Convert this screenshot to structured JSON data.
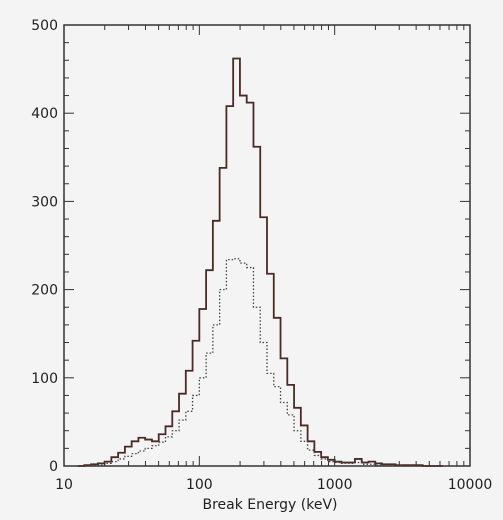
{
  "chart_data": {
    "type": "histogram",
    "xscale": "log",
    "xlabel": "Break Energy (keV)",
    "ylabel": "",
    "title": "",
    "xlim": [
      10,
      10000
    ],
    "ylim": [
      0,
      500
    ],
    "x_ticks": [
      10,
      100,
      1000,
      10000
    ],
    "x_tick_labels": [
      "10",
      "100",
      "1000",
      "10000"
    ],
    "y_ticks": [
      0,
      100,
      200,
      300,
      400,
      500
    ],
    "y_tick_labels": [
      "0",
      "100",
      "200",
      "300",
      "400",
      "500"
    ],
    "grid": false,
    "bin_edges_log10": [
      1.1,
      1.15,
      1.2,
      1.25,
      1.3,
      1.35,
      1.4,
      1.45,
      1.5,
      1.55,
      1.6,
      1.65,
      1.7,
      1.75,
      1.8,
      1.85,
      1.9,
      1.95,
      2.0,
      2.05,
      2.1,
      2.15,
      2.2,
      2.25,
      2.3,
      2.35,
      2.4,
      2.45,
      2.5,
      2.55,
      2.6,
      2.65,
      2.7,
      2.75,
      2.8,
      2.85,
      2.9,
      2.95,
      3.0,
      3.05,
      3.1,
      3.15,
      3.2,
      3.25,
      3.3,
      3.35,
      3.4,
      3.45,
      3.5,
      3.55,
      3.6,
      3.65,
      3.7,
      3.75,
      3.8
    ],
    "series": [
      {
        "style": "solid",
        "color": "#4a2a24",
        "values": [
          0,
          1,
          2,
          3,
          5,
          10,
          15,
          22,
          28,
          32,
          30,
          28,
          36,
          45,
          62,
          82,
          108,
          142,
          178,
          222,
          278,
          338,
          408,
          462,
          420,
          412,
          362,
          282,
          218,
          168,
          122,
          92,
          66,
          46,
          28,
          16,
          10,
          7,
          5,
          4,
          4,
          8,
          4,
          5,
          3,
          2,
          2,
          1,
          1,
          1,
          1,
          0,
          0,
          0
        ]
      },
      {
        "style": "dotted",
        "color": "#444444",
        "values": [
          0,
          0,
          1,
          1,
          3,
          5,
          8,
          11,
          14,
          17,
          20,
          23,
          27,
          33,
          40,
          52,
          62,
          80,
          100,
          128,
          160,
          200,
          234,
          235,
          230,
          225,
          180,
          140,
          105,
          90,
          72,
          58,
          40,
          28,
          18,
          12,
          8,
          5,
          4,
          3,
          3,
          4,
          2,
          2,
          1,
          1,
          1,
          1,
          0,
          0,
          0,
          0,
          0,
          0
        ]
      }
    ]
  }
}
